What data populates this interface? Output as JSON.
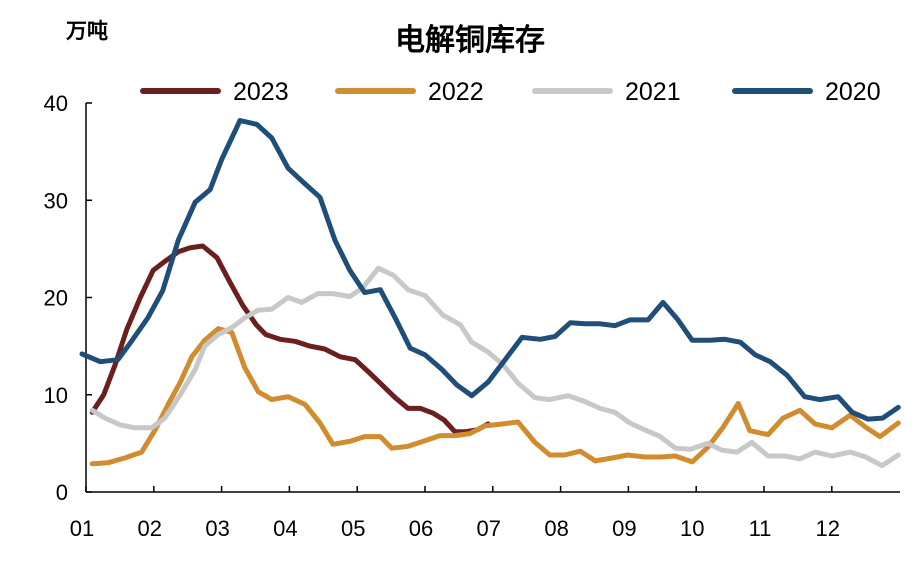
{
  "chart_data": {
    "type": "line",
    "title": "电解铜库存",
    "ylabel": "万吨",
    "xlabel": "",
    "ylim": [
      0,
      40
    ],
    "yticks": [
      0,
      10,
      20,
      30,
      40
    ],
    "xlim": [
      1,
      13
    ],
    "xticks": [
      "01",
      "02",
      "03",
      "04",
      "05",
      "06",
      "07",
      "08",
      "09",
      "10",
      "11",
      "12"
    ],
    "grid": false,
    "legend_position": "top",
    "series": [
      {
        "name": "2023",
        "color": "#6B1F1F",
        "points": [
          [
            1.15,
            8.2
          ],
          [
            1.32,
            10.0
          ],
          [
            1.49,
            13.1
          ],
          [
            1.66,
            16.7
          ],
          [
            1.86,
            20.0
          ],
          [
            2.05,
            22.8
          ],
          [
            2.22,
            23.7
          ],
          [
            2.42,
            24.7
          ],
          [
            2.59,
            25.1
          ],
          [
            2.78,
            25.3
          ],
          [
            2.99,
            24.1
          ],
          [
            3.18,
            21.6
          ],
          [
            3.37,
            19.2
          ],
          [
            3.57,
            17.2
          ],
          [
            3.71,
            16.2
          ],
          [
            3.92,
            15.7
          ],
          [
            4.14,
            15.5
          ],
          [
            4.36,
            15.0
          ],
          [
            4.58,
            14.7
          ],
          [
            4.81,
            13.9
          ],
          [
            5.03,
            13.6
          ],
          [
            5.25,
            12.2
          ],
          [
            5.47,
            10.7
          ],
          [
            5.62,
            9.7
          ],
          [
            5.81,
            8.6
          ],
          [
            5.99,
            8.6
          ],
          [
            6.18,
            8.1
          ],
          [
            6.34,
            7.4
          ],
          [
            6.5,
            6.2
          ],
          [
            6.66,
            6.2
          ],
          [
            6.83,
            6.4
          ],
          [
            6.99,
            7.0
          ]
        ]
      },
      {
        "name": "2022",
        "color": "#D08C2E",
        "points": [
          [
            1.15,
            2.9
          ],
          [
            1.38,
            3.0
          ],
          [
            1.63,
            3.5
          ],
          [
            1.88,
            4.1
          ],
          [
            2.08,
            6.4
          ],
          [
            2.27,
            9.0
          ],
          [
            2.45,
            11.3
          ],
          [
            2.62,
            13.9
          ],
          [
            2.81,
            15.6
          ],
          [
            3.01,
            16.8
          ],
          [
            3.21,
            16.4
          ],
          [
            3.4,
            12.8
          ],
          [
            3.6,
            10.3
          ],
          [
            3.8,
            9.5
          ],
          [
            4.04,
            9.8
          ],
          [
            4.29,
            9.0
          ],
          [
            4.51,
            7.1
          ],
          [
            4.7,
            4.9
          ],
          [
            4.95,
            5.2
          ],
          [
            5.17,
            5.7
          ],
          [
            5.4,
            5.7
          ],
          [
            5.57,
            4.5
          ],
          [
            5.81,
            4.7
          ],
          [
            6.03,
            5.2
          ],
          [
            6.28,
            5.8
          ],
          [
            6.5,
            5.8
          ],
          [
            6.72,
            6.0
          ],
          [
            6.94,
            6.8
          ],
          [
            7.21,
            7.0
          ],
          [
            7.43,
            7.2
          ],
          [
            7.68,
            5.1
          ],
          [
            7.9,
            3.8
          ],
          [
            8.12,
            3.8
          ],
          [
            8.35,
            4.2
          ],
          [
            8.57,
            3.2
          ],
          [
            8.82,
            3.5
          ],
          [
            9.05,
            3.8
          ],
          [
            9.3,
            3.6
          ],
          [
            9.53,
            3.6
          ],
          [
            9.75,
            3.7
          ],
          [
            10.0,
            3.1
          ],
          [
            10.23,
            4.6
          ],
          [
            10.45,
            6.6
          ],
          [
            10.68,
            9.1
          ],
          [
            10.85,
            6.3
          ],
          [
            11.12,
            5.9
          ],
          [
            11.34,
            7.6
          ],
          [
            11.59,
            8.4
          ],
          [
            11.81,
            7.0
          ],
          [
            12.06,
            6.6
          ],
          [
            12.33,
            7.9
          ],
          [
            12.55,
            6.7
          ],
          [
            12.77,
            5.7
          ],
          [
            13.04,
            7.1
          ]
        ]
      },
      {
        "name": "2021",
        "color": "#C8C8C8",
        "points": [
          [
            1.15,
            8.4
          ],
          [
            1.34,
            7.6
          ],
          [
            1.56,
            6.9
          ],
          [
            1.78,
            6.6
          ],
          [
            2.03,
            6.6
          ],
          [
            2.22,
            7.6
          ],
          [
            2.45,
            10.0
          ],
          [
            2.67,
            12.6
          ],
          [
            2.81,
            15.0
          ],
          [
            3.01,
            16.2
          ],
          [
            3.21,
            16.9
          ],
          [
            3.4,
            17.9
          ],
          [
            3.6,
            18.7
          ],
          [
            3.8,
            18.8
          ],
          [
            4.04,
            20.0
          ],
          [
            4.24,
            19.5
          ],
          [
            4.48,
            20.4
          ],
          [
            4.7,
            20.4
          ],
          [
            4.95,
            20.1
          ],
          [
            5.14,
            21.0
          ],
          [
            5.37,
            23.0
          ],
          [
            5.59,
            22.3
          ],
          [
            5.81,
            20.8
          ],
          [
            6.06,
            20.2
          ],
          [
            6.32,
            18.2
          ],
          [
            6.58,
            17.2
          ],
          [
            6.75,
            15.4
          ],
          [
            6.99,
            14.4
          ],
          [
            7.21,
            13.1
          ],
          [
            7.43,
            11.2
          ],
          [
            7.68,
            9.7
          ],
          [
            7.9,
            9.5
          ],
          [
            8.17,
            9.9
          ],
          [
            8.42,
            9.3
          ],
          [
            8.64,
            8.6
          ],
          [
            8.86,
            8.2
          ],
          [
            9.08,
            7.1
          ],
          [
            9.3,
            6.4
          ],
          [
            9.53,
            5.7
          ],
          [
            9.75,
            4.5
          ],
          [
            9.97,
            4.4
          ],
          [
            10.23,
            5.0
          ],
          [
            10.44,
            4.3
          ],
          [
            10.66,
            4.1
          ],
          [
            10.88,
            5.1
          ],
          [
            11.12,
            3.7
          ],
          [
            11.37,
            3.7
          ],
          [
            11.59,
            3.4
          ],
          [
            11.81,
            4.1
          ],
          [
            12.06,
            3.7
          ],
          [
            12.33,
            4.1
          ],
          [
            12.56,
            3.6
          ],
          [
            12.8,
            2.7
          ],
          [
            13.04,
            3.8
          ]
        ]
      },
      {
        "name": "2020",
        "color": "#1F4E79",
        "points": [
          [
            1.0,
            14.2
          ],
          [
            1.27,
            13.4
          ],
          [
            1.53,
            13.6
          ],
          [
            1.71,
            15.3
          ],
          [
            1.97,
            17.9
          ],
          [
            2.19,
            20.7
          ],
          [
            2.42,
            25.9
          ],
          [
            2.67,
            29.8
          ],
          [
            2.89,
            31.1
          ],
          [
            3.06,
            34.2
          ],
          [
            3.33,
            38.2
          ],
          [
            3.58,
            37.8
          ],
          [
            3.8,
            36.4
          ],
          [
            4.04,
            33.3
          ],
          [
            4.27,
            31.8
          ],
          [
            4.51,
            30.3
          ],
          [
            4.73,
            25.9
          ],
          [
            4.95,
            22.8
          ],
          [
            5.17,
            20.5
          ],
          [
            5.4,
            20.8
          ],
          [
            5.62,
            17.9
          ],
          [
            5.84,
            14.8
          ],
          [
            6.06,
            14.1
          ],
          [
            6.31,
            12.6
          ],
          [
            6.53,
            11.0
          ],
          [
            6.75,
            9.9
          ],
          [
            6.99,
            11.3
          ],
          [
            7.24,
            13.6
          ],
          [
            7.49,
            15.9
          ],
          [
            7.76,
            15.7
          ],
          [
            7.98,
            16.0
          ],
          [
            8.2,
            17.4
          ],
          [
            8.42,
            17.3
          ],
          [
            8.64,
            17.3
          ],
          [
            8.86,
            17.1
          ],
          [
            9.08,
            17.7
          ],
          [
            9.35,
            17.7
          ],
          [
            9.57,
            19.5
          ],
          [
            9.79,
            17.7
          ],
          [
            10.0,
            15.6
          ],
          [
            10.26,
            15.6
          ],
          [
            10.48,
            15.7
          ],
          [
            10.71,
            15.4
          ],
          [
            10.93,
            14.1
          ],
          [
            11.15,
            13.4
          ],
          [
            11.4,
            12.0
          ],
          [
            11.66,
            9.8
          ],
          [
            11.88,
            9.5
          ],
          [
            12.15,
            9.8
          ],
          [
            12.36,
            8.2
          ],
          [
            12.59,
            7.5
          ],
          [
            12.81,
            7.6
          ],
          [
            13.04,
            8.7
          ]
        ]
      }
    ]
  }
}
